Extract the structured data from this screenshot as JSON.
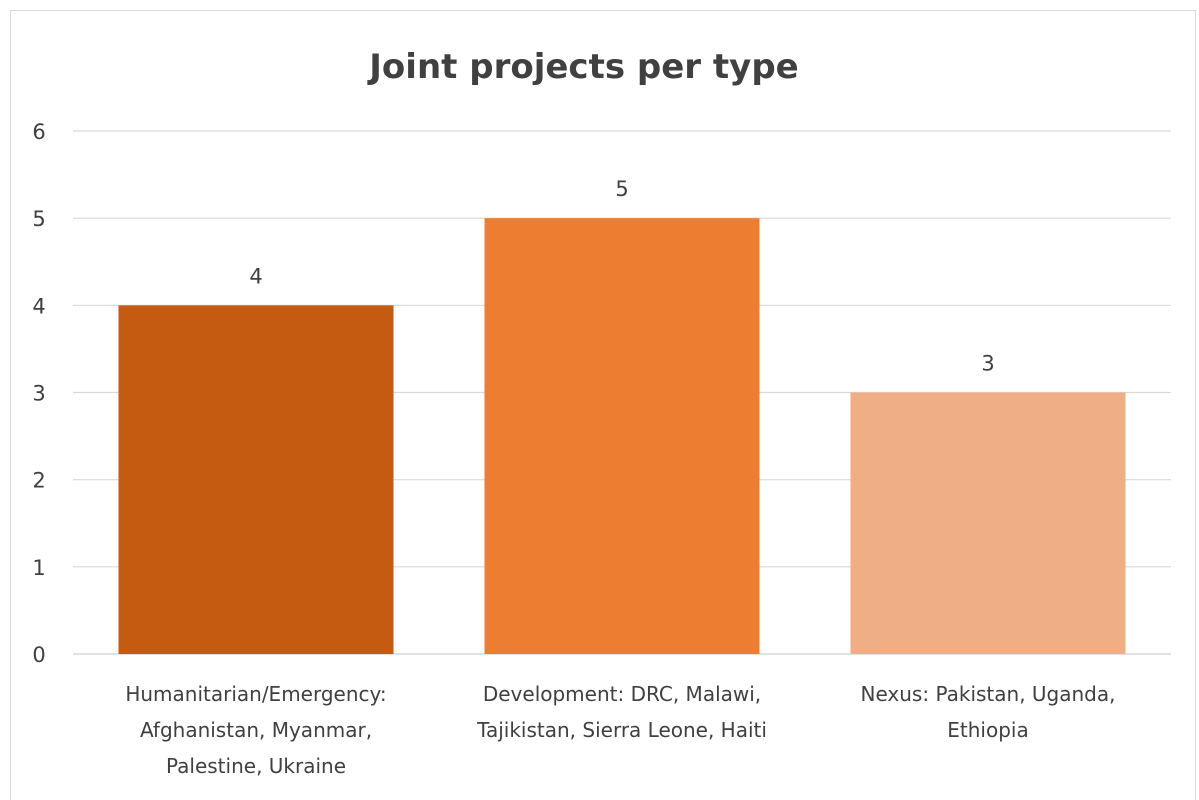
{
  "chart_data": {
    "type": "bar",
    "title": "Joint projects per type",
    "xlabel": "",
    "ylabel": "",
    "ylim": [
      0,
      6
    ],
    "yticks": [
      0,
      1,
      2,
      3,
      4,
      5,
      6
    ],
    "grid": true,
    "legend": "none",
    "categories": [
      [
        "Humanitarian/Emergency:",
        "Afghanistan, Myanmar,",
        "Palestine, Ukraine"
      ],
      [
        "Development: DRC, Malawi,",
        "Tajikistan, Sierra Leone, Haiti"
      ],
      [
        "Nexus: Pakistan, Uganda,",
        "Ethiopia"
      ]
    ],
    "values": [
      4,
      5,
      3
    ],
    "data_labels": [
      "4",
      "5",
      "3"
    ],
    "colors": [
      "#c55a11",
      "#ed7d31",
      "#f0ae85"
    ],
    "gridline_color": "#d9d9d9",
    "axis_color": "#d9d9d9",
    "text_color": "#404040"
  }
}
